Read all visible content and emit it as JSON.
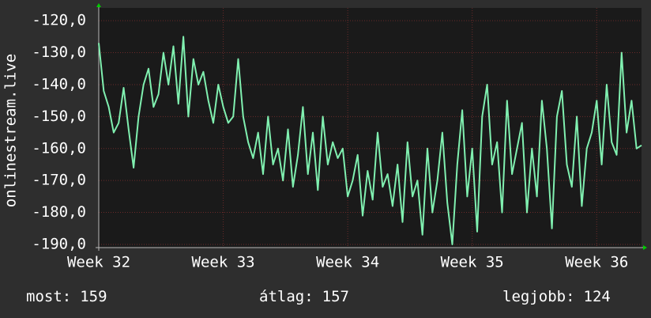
{
  "chart_data": {
    "type": "line",
    "ylabel": "onlinestream.live",
    "xlim": [
      32,
      36.36
    ],
    "xticks": [
      {
        "value": 32,
        "label": "Week 32"
      },
      {
        "value": 33,
        "label": "Week 33"
      },
      {
        "value": 34,
        "label": "Week 34"
      },
      {
        "value": 35,
        "label": "Week 35"
      },
      {
        "value": 36,
        "label": "Week 36"
      }
    ],
    "ylim": [
      -191,
      -116
    ],
    "yticks": [
      {
        "value": -120,
        "label": "-120,0"
      },
      {
        "value": -130,
        "label": "-130,0"
      },
      {
        "value": -140,
        "label": "-140,0"
      },
      {
        "value": -150,
        "label": "-150,0"
      },
      {
        "value": -160,
        "label": "-160,0"
      },
      {
        "value": -170,
        "label": "-170,0"
      },
      {
        "value": -180,
        "label": "-180,0"
      },
      {
        "value": -190,
        "label": "-190,0"
      }
    ],
    "grid": true,
    "x": [
      32,
      32.04,
      32.08,
      32.12,
      32.16,
      32.2,
      32.24,
      32.28,
      32.32,
      32.36,
      32.4,
      32.44,
      32.48,
      32.52,
      32.56,
      32.6,
      32.64,
      32.68,
      32.72,
      32.76,
      32.8,
      32.84,
      32.88,
      32.92,
      32.96,
      33,
      33.04,
      33.08,
      33.12,
      33.16,
      33.2,
      33.24,
      33.28,
      33.32,
      33.36,
      33.4,
      33.44,
      33.48,
      33.52,
      33.56,
      33.6,
      33.64,
      33.68,
      33.72,
      33.76,
      33.8,
      33.84,
      33.88,
      33.92,
      33.96,
      34,
      34.04,
      34.08,
      34.12,
      34.16,
      34.2,
      34.24,
      34.28,
      34.32,
      34.36,
      34.4,
      34.44,
      34.48,
      34.52,
      34.56,
      34.6,
      34.64,
      34.68,
      34.72,
      34.76,
      34.8,
      34.84,
      34.88,
      34.92,
      34.96,
      35,
      35.04,
      35.08,
      35.12,
      35.16,
      35.2,
      35.24,
      35.28,
      35.32,
      35.36,
      35.4,
      35.44,
      35.48,
      35.52,
      35.56,
      35.6,
      35.64,
      35.68,
      35.72,
      35.76,
      35.8,
      35.84,
      35.88,
      35.92,
      35.96,
      36,
      36.04,
      36.08,
      36.12,
      36.16,
      36.2,
      36.24,
      36.28,
      36.32,
      36.36
    ],
    "series": [
      {
        "name": "onlinestream.live",
        "color": "#80f0b0",
        "values": [
          -127,
          -142,
          -147,
          -155,
          -152,
          -141,
          -154,
          -166,
          -150,
          -140,
          -135,
          -147,
          -143,
          -130,
          -140,
          -128,
          -146,
          -125,
          -150,
          -132,
          -140,
          -136,
          -145,
          -152,
          -140,
          -147,
          -152,
          -150,
          -132,
          -150,
          -158,
          -163,
          -155,
          -168,
          -150,
          -165,
          -160,
          -170,
          -154,
          -172,
          -162,
          -147,
          -168,
          -155,
          -173,
          -150,
          -165,
          -158,
          -163,
          -160,
          -175,
          -170,
          -162,
          -181,
          -167,
          -176,
          -155,
          -172,
          -168,
          -178,
          -165,
          -183,
          -158,
          -175,
          -170,
          -187,
          -160,
          -180,
          -170,
          -155,
          -177,
          -190,
          -165,
          -148,
          -175,
          -160,
          -186,
          -150,
          -140,
          -165,
          -158,
          -180,
          -145,
          -168,
          -160,
          -152,
          -180,
          -160,
          -175,
          -145,
          -160,
          -185,
          -150,
          -142,
          -165,
          -172,
          -150,
          -178,
          -160,
          -155,
          -145,
          -165,
          -140,
          -158,
          -162,
          -130,
          -155,
          -145,
          -160,
          -159
        ]
      }
    ],
    "footer": [
      {
        "label": "most:",
        "value": 159
      },
      {
        "label": "átlag:",
        "value": 157
      },
      {
        "label": "legjobb:",
        "value": 124
      }
    ]
  }
}
